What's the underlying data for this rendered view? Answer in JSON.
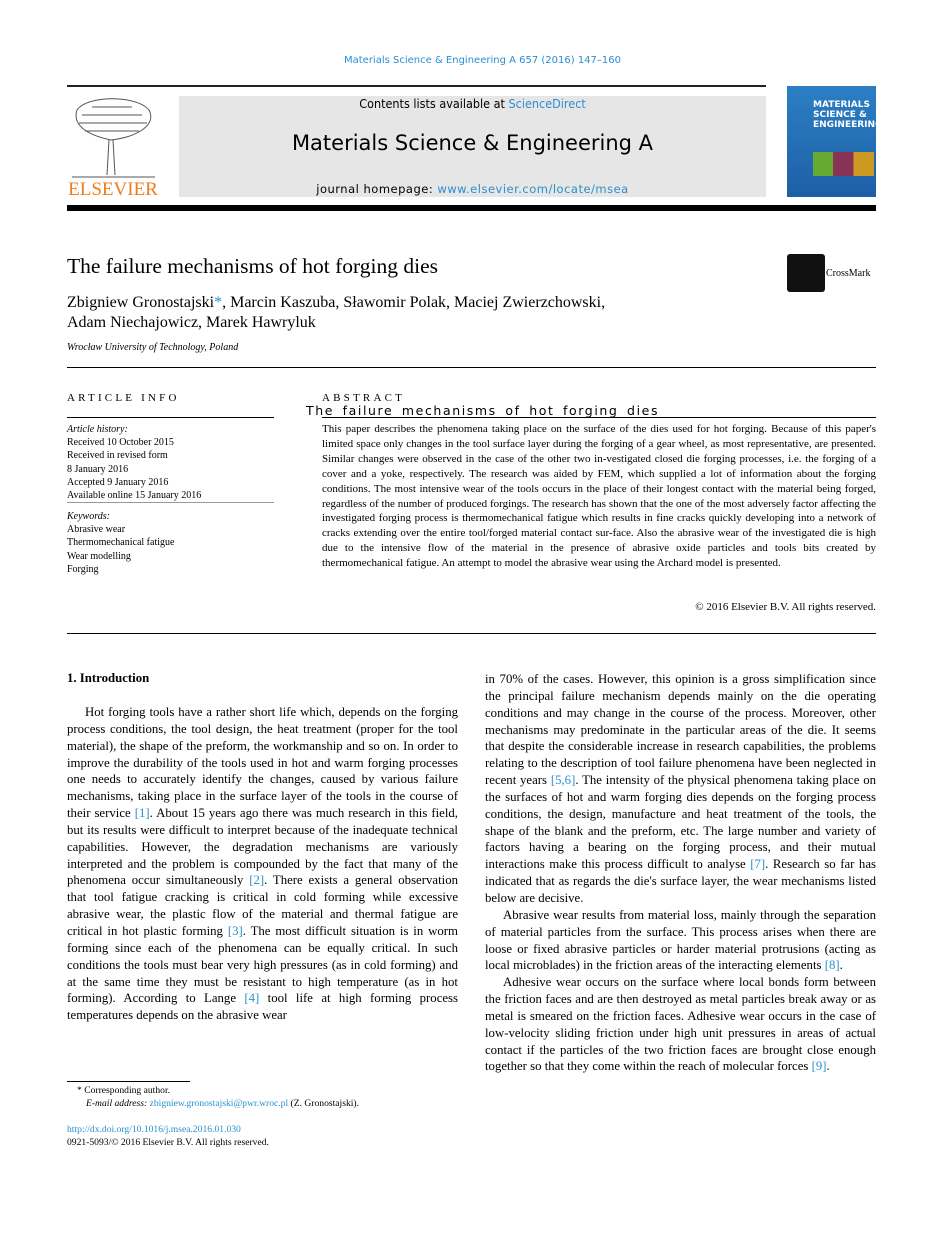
{
  "header": {
    "citation": "Materials Science & Engineering A 657 (2016) 147–160",
    "contents_prefix": "Contents lists available at ",
    "contents_link": "ScienceDirect",
    "journal_title": "Materials Science & Engineering A",
    "homepage_prefix": "journal homepage: ",
    "homepage_link": "www.elsevier.com/locate/msea",
    "publisher_logo": "ELSEVIER",
    "cover_text": "MATERIALS SCIENCE & ENGINEERING",
    "crossmark": "CrossMark"
  },
  "article": {
    "title": "The failure mechanisms of hot forging dies",
    "authors_line1": "Zbigniew Gronostajski",
    "star": "*",
    "authors_line1_rest": ", Marcin Kaszuba, Sławomir Polak, Maciej Zwierzchowski,",
    "authors_line2": "Adam Niechajowicz, Marek Hawryluk",
    "affiliation": "Wrocław University of Technology, Poland"
  },
  "article_info": {
    "heading": "ARTICLE INFO",
    "history_label": "Article history:",
    "history": [
      "Received 10 October 2015",
      "Received in revised form",
      "8 January 2016",
      "Accepted 9 January 2016",
      "Available online 15 January 2016"
    ],
    "keywords_label": "Keywords:",
    "keywords": [
      "Abrasive wear",
      "Thermomechanical fatigue",
      "Wear modelling",
      "Forging"
    ]
  },
  "abstract": {
    "heading": "ABSTRACT",
    "overlay_title": "The failure mechanisms of hot forging dies",
    "text": "This paper describes the phenomena taking place on the surface of the dies used for hot forging. Because of this paper's limited space only changes in the tool surface layer during the forging of a gear wheel, as most representative, are presented. Similar changes were observed in the case of the other two in-vestigated closed die forging processes, i.e. the forging of a cover and a yoke, respectively. The research was aided by FEM, which supplied a lot of information about the forging conditions. The most intensive wear of the tools occurs in the place of their longest contact with the material being forged, regardless of the number of produced forgings. The research has shown that the one of the most adversely factor affecting the investigated forging process is thermomechanical fatigue which results in fine cracks quickly developing into a network of cracks extending over the entire tool/forged material contact sur-face. Also the abrasive wear of the investigated die is high due to the intensive flow of the material in the presence of abrasive oxide particles and tools bits created by thermomechanical fatigue. An attempt to model the abrasive wear using the Archard model is presented.",
    "copyright": "© 2016 Elsevier B.V. All rights reserved."
  },
  "body": {
    "section_title": "1.  Introduction",
    "left": [
      [
        {
          "t": "Hot forging tools have a rather short life which, depends on the forging process conditions, the tool design, the heat treatment (proper for the tool material), the shape of the preform, the workmanship and so on. In order to improve the durability of the tools used in hot and warm forging processes one needs to accurately identify the changes, caused by various failure mechanisms, taking place in the surface layer of the tools in the course of their service "
        },
        {
          "r": "[1]"
        },
        {
          "t": ". About 15 years ago there was much research in this field, but its results were difficult to interpret because of the inadequate technical capabilities. However, the degradation mechanisms are variously interpreted and the problem is compounded by the fact that many of the phenomena occur simultaneously "
        },
        {
          "r": "[2]"
        },
        {
          "t": ". There exists a general observation that tool fatigue cracking is critical in cold forming while excessive abrasive wear, the plastic flow of the material and thermal fatigue are critical in hot plastic forming "
        },
        {
          "r": "[3]"
        },
        {
          "t": ". The most difficult situation is in worm forming since each of the phenomena can be equally critical. In such conditions the tools must bear very high pressures (as in cold forming) and at the same time they must be resistant to high temperature (as in hot forming). According to Lange "
        },
        {
          "r": "[4]"
        },
        {
          "t": " tool life at high forming process temperatures depends on the abrasive wear"
        }
      ]
    ],
    "right": [
      [
        {
          "t": "in 70% of the cases. However, this opinion is a gross simplification since the principal failure mechanism depends mainly on the die operating conditions and may change in the course of the process. Moreover, other mechanisms may predominate in the particular areas of the die. It seems that despite the considerable increase in research capabilities, the problems relating to the description of tool failure phenomena have been neglected in recent years "
        },
        {
          "r": "[5,6]"
        },
        {
          "t": ". The intensity of the physical phenomena taking place on the surfaces of hot and warm forging dies depends on the forging process conditions, the design, manufacture and heat treatment of the tools, the shape of the blank and the preform, etc. The large number and variety of factors having a bearing on the forging process, and their mutual interactions make this process difficult to analyse "
        },
        {
          "r": "[7]"
        },
        {
          "t": ". Research so far has indicated that as regards the die's surface layer, the wear mechanisms listed below are decisive."
        }
      ],
      [
        {
          "t": "Abrasive wear results from material loss, mainly through the separation of material particles from the surface. This process arises when there are loose or fixed abrasive particles or harder material protrusions (acting as local microblades) in the friction areas of the interacting elements "
        },
        {
          "r": "[8]"
        },
        {
          "t": "."
        }
      ],
      [
        {
          "t": "Adhesive wear occurs on the surface where local bonds form between the friction faces and are then destroyed as metal particles break away or as metal is smeared on the friction faces. Adhesive wear occurs in the case of low-velocity sliding friction under high unit pressures in areas of actual contact if the particles of the two friction faces are brought close enough together so that they come within the reach of molecular forces "
        },
        {
          "r": "[9]"
        },
        {
          "t": "."
        }
      ]
    ]
  },
  "footnote": {
    "star": "*",
    "label": "Corresponding author.",
    "email_label": "E-mail address: ",
    "email": "zbigniew.gronostajski@pwr.wroc.pl",
    "email_suffix": " (Z. Gronostajski).",
    "doi": "http://dx.doi.org/10.1016/j.msea.2016.01.030",
    "issn": "0921-5093/© 2016 Elsevier B.V. All rights reserved."
  },
  "colors": {
    "link": "#2a8fd0",
    "elsevier_orange": "#f07c1b",
    "banner_bg": "#e6e6e6"
  }
}
